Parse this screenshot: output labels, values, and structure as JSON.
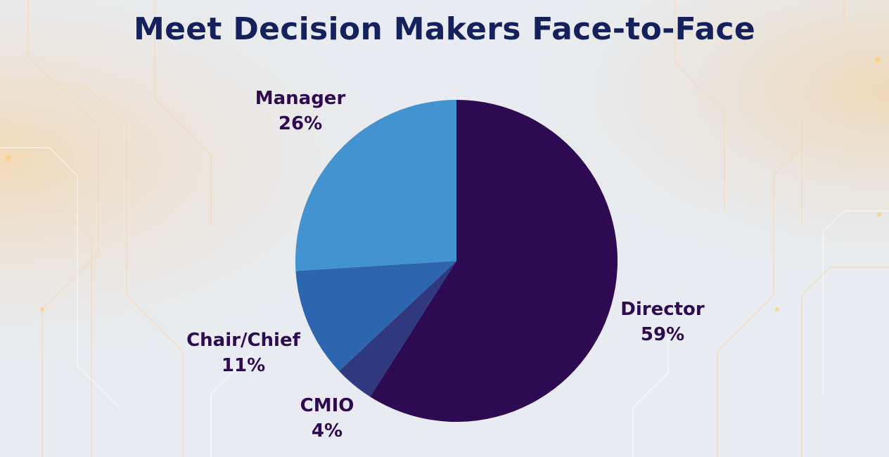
{
  "title": "Meet Decision Makers Face-to-Face",
  "chart_data": {
    "type": "pie",
    "title": "Meet Decision Makers Face-to-Face",
    "slices": [
      {
        "label": "Director",
        "value": 59,
        "display": "59%",
        "color": "#2e0a52"
      },
      {
        "label": "CMIO",
        "value": 4,
        "display": "4%",
        "color": "#30387f"
      },
      {
        "label": "Chair/Chief",
        "value": 11,
        "display": "11%",
        "color": "#2d65ae"
      },
      {
        "label": "Manager",
        "value": 26,
        "display": "26%",
        "color": "#4293d0"
      }
    ],
    "start_angle_deg": 0,
    "direction": "clockwise",
    "legend": "none",
    "labels": "outside"
  },
  "colors": {
    "title": "#14215c",
    "label_text": "#2e0a52",
    "background": "#e7ebf1"
  }
}
